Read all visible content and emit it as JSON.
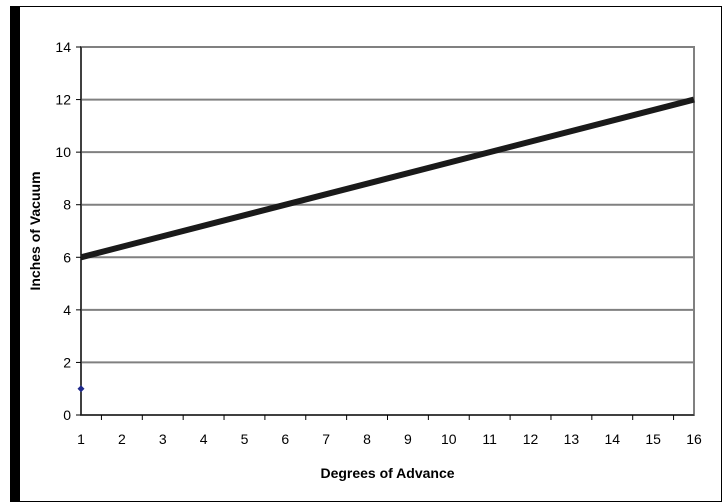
{
  "chart_data": {
    "type": "line",
    "title": "",
    "xlabel": "Degrees of Advance",
    "ylabel": "Inches of Vacuum",
    "x": [
      1,
      16
    ],
    "series": [
      {
        "values": [
          6,
          12
        ],
        "color": "#1a1a1a"
      }
    ],
    "markers": [
      {
        "x": 1,
        "y": 1,
        "color": "#1f2a8c"
      }
    ],
    "x_ticks": [
      1,
      2,
      3,
      4,
      5,
      6,
      7,
      8,
      9,
      10,
      11,
      12,
      13,
      14,
      15,
      16
    ],
    "y_ticks": [
      0,
      2,
      4,
      6,
      8,
      10,
      12,
      14
    ],
    "xlim": [
      1,
      16
    ],
    "ylim": [
      0,
      14
    ],
    "grid": "horizontal",
    "legend": "none",
    "colors": {
      "gridline": "#808080",
      "plot_border": "#808080",
      "axis": "#000000"
    }
  }
}
